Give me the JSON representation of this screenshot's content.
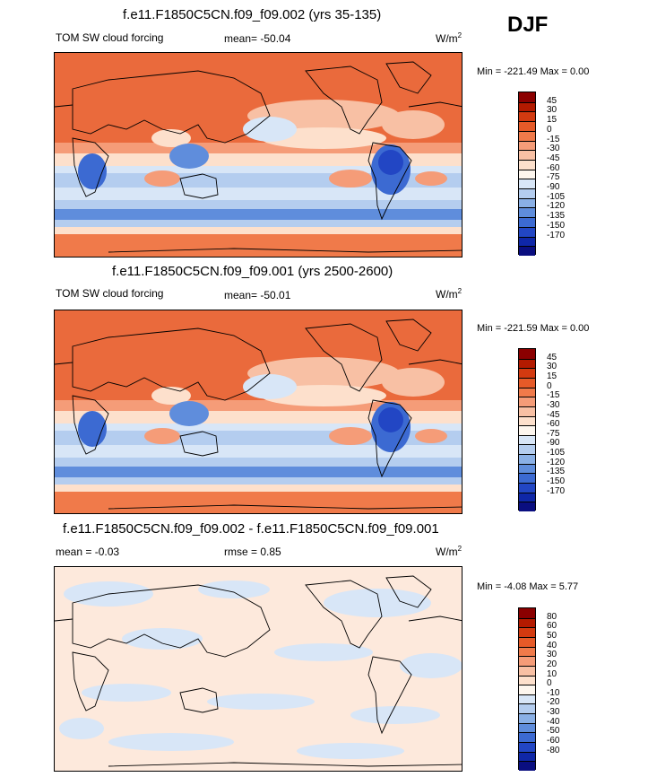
{
  "season": "DJF",
  "panels": [
    {
      "title": "f.e11.F1850C5CN.f09_f09.002 (yrs 35-135)",
      "left_label": "TOM SW cloud forcing",
      "center_label": "mean= -50.04",
      "units": "W/m",
      "units_sup": "2",
      "minmax": "Min = -221.49 Max =   0.00",
      "colorbar": {
        "labels": [
          "45",
          "30",
          "15",
          "0",
          "-15",
          "-30",
          "-45",
          "-60",
          "-75",
          "-90",
          "-105",
          "-120",
          "-135",
          "-150",
          "-170"
        ],
        "colors": [
          "#8b0000",
          "#b31a00",
          "#d33a10",
          "#e65a28",
          "#f07a4a",
          "#f59c78",
          "#f8c0a4",
          "#fde0cc",
          "#fdf6ee",
          "#d8e6f7",
          "#b4cdef",
          "#8ab0e6",
          "#5f8ddc",
          "#3c6ad2",
          "#2246c4",
          "#0f27a8",
          "#0a0e80"
        ]
      },
      "map_style": "forcing"
    },
    {
      "title": "f.e11.F1850C5CN.f09_f09.001 (yrs 2500-2600)",
      "left_label": "TOM SW cloud forcing",
      "center_label": "mean= -50.01",
      "units": "W/m",
      "units_sup": "2",
      "minmax": "Min = -221.59 Max =   0.00",
      "colorbar": {
        "labels": [
          "45",
          "30",
          "15",
          "0",
          "-15",
          "-30",
          "-45",
          "-60",
          "-75",
          "-90",
          "-105",
          "-120",
          "-135",
          "-150",
          "-170"
        ],
        "colors": [
          "#8b0000",
          "#b31a00",
          "#d33a10",
          "#e65a28",
          "#f07a4a",
          "#f59c78",
          "#f8c0a4",
          "#fde0cc",
          "#fdf6ee",
          "#d8e6f7",
          "#b4cdef",
          "#8ab0e6",
          "#5f8ddc",
          "#3c6ad2",
          "#2246c4",
          "#0f27a8",
          "#0a0e80"
        ]
      },
      "map_style": "forcing"
    },
    {
      "title": "f.e11.F1850C5CN.f09_f09.002 - f.e11.F1850C5CN.f09_f09.001",
      "left_label": "mean =  -0.03",
      "center_label": "rmse =   0.85",
      "units": "W/m",
      "units_sup": "2",
      "minmax": "Min =  -4.08 Max =   5.77",
      "colorbar": {
        "labels": [
          "80",
          "60",
          "50",
          "40",
          "30",
          "20",
          "10",
          "0",
          "-10",
          "-20",
          "-30",
          "-40",
          "-50",
          "-60",
          "-80"
        ],
        "colors": [
          "#8b0000",
          "#b31a00",
          "#d33a10",
          "#e65a28",
          "#f07a4a",
          "#f59c78",
          "#f8c0a4",
          "#fde0cc",
          "#fdf6ee",
          "#d8e6f7",
          "#b4cdef",
          "#8ab0e6",
          "#5f8ddc",
          "#3c6ad2",
          "#2246c4",
          "#0f27a8",
          "#0a0e80"
        ]
      },
      "map_style": "diff"
    }
  ]
}
